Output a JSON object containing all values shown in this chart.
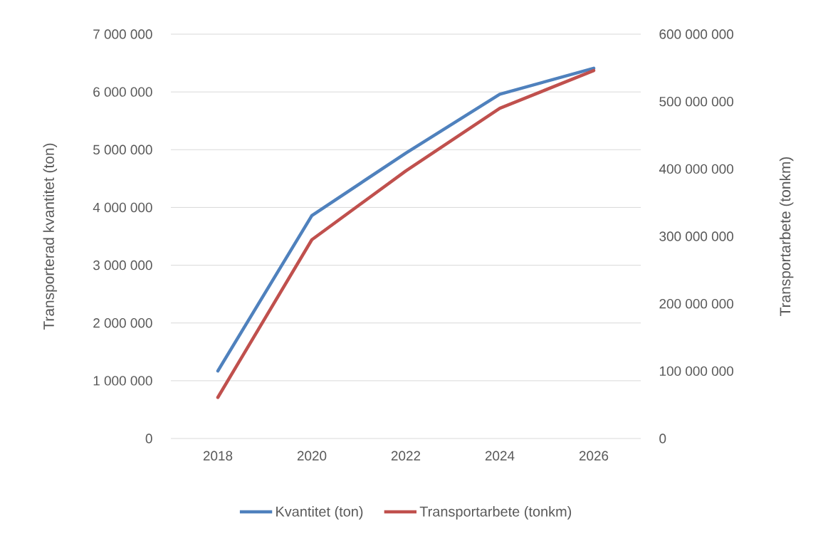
{
  "chart_data": {
    "type": "line",
    "categories": [
      "2018",
      "2020",
      "2022",
      "2024",
      "2026"
    ],
    "ylabel": "Transporterad kvantitet (ton)",
    "y2label": "Transportarbete (tonkm)",
    "ylim": [
      0,
      7000000
    ],
    "yticks": [
      0,
      {
        "value": 1000000,
        "label": "1 000 000"
      },
      {
        "value": 2000000,
        "label": "2 000 000"
      },
      {
        "value": 3000000,
        "label": "3 000 000"
      },
      {
        "value": 4000000,
        "label": "4 000 000"
      },
      {
        "value": 5000000,
        "label": "5 000 000"
      },
      {
        "value": 6000000,
        "label": "6 000 000"
      },
      {
        "value": 7000000,
        "label": "7 000 000"
      }
    ],
    "y2lim": [
      0,
      600000000
    ],
    "y2ticks": [
      0,
      {
        "value": 100000000,
        "label": "100 000 000"
      },
      {
        "value": 200000000,
        "label": "200 000 000"
      },
      {
        "value": 300000000,
        "label": "300 000 000"
      },
      {
        "value": 400000000,
        "label": "400 000 000"
      },
      {
        "value": 500000000,
        "label": "500 000 000"
      },
      {
        "value": 600000000,
        "label": "600 000 000"
      }
    ],
    "series": [
      {
        "name": "Kvantitet (ton)",
        "color": "#4f81bd",
        "values": [
          1170000,
          3860000,
          4940000,
          5960000,
          6410000
        ]
      },
      {
        "name": "Transportarbete (tonkm)",
        "color": "#c0504d",
        "axis": "y2",
        "values": [
          61000000,
          295000000,
          397000000,
          490000000,
          546000000
        ]
      }
    ],
    "grid": "y",
    "legend": "bottom"
  }
}
